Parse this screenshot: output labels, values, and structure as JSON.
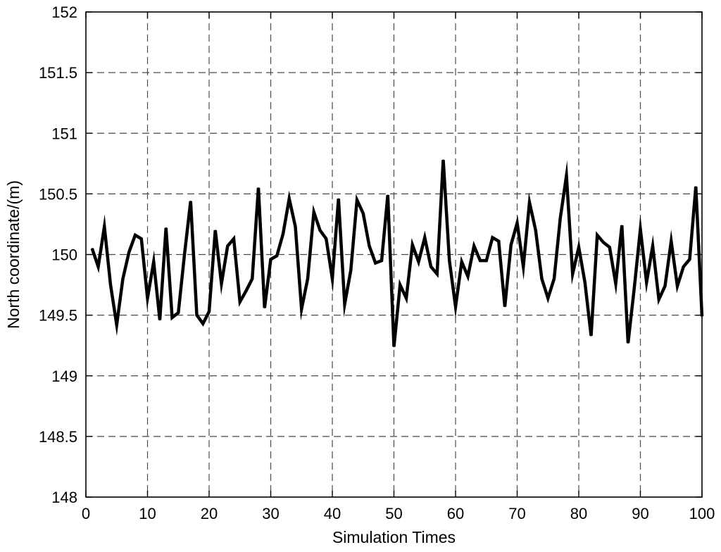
{
  "chart_data": {
    "type": "line",
    "title": "",
    "xlabel": "Simulation Times",
    "ylabel": "North coordinate/(m)",
    "xlim": [
      0,
      100
    ],
    "ylim": [
      148,
      152
    ],
    "grid": true,
    "x_ticks": [
      0,
      10,
      20,
      30,
      40,
      50,
      60,
      70,
      80,
      90,
      100
    ],
    "x_tick_labels": [
      "0",
      "10",
      "20",
      "30",
      "40",
      "50",
      "60",
      "70",
      "80",
      "90",
      "100"
    ],
    "y_ticks": [
      148,
      148.5,
      149,
      149.5,
      150,
      150.5,
      151,
      151.5,
      152
    ],
    "y_tick_labels": [
      "148",
      "148.5",
      "149",
      "149.5",
      "150",
      "150.5",
      "151",
      "151.5",
      "152"
    ],
    "colors": {
      "line": "#000000",
      "grid": "#4a4a4a",
      "background": "#ffffff"
    },
    "series": [
      {
        "x": [
          1,
          2,
          3,
          4,
          5,
          6,
          7,
          8,
          9,
          10,
          11,
          12,
          13,
          14,
          15,
          16,
          17,
          18,
          19,
          20,
          21,
          22,
          23,
          24,
          25,
          26,
          27,
          28,
          29,
          30,
          31,
          32,
          33,
          34,
          35,
          36,
          37,
          38,
          39,
          40,
          41,
          42,
          43,
          44,
          45,
          46,
          47,
          48,
          49,
          50,
          51,
          52,
          53,
          54,
          55,
          56,
          57,
          58,
          59,
          60,
          61,
          62,
          63,
          64,
          65,
          66,
          67,
          68,
          69,
          70,
          71,
          72,
          73,
          74,
          75,
          76,
          77,
          78,
          79,
          80,
          81,
          82,
          83,
          84,
          85,
          86,
          87,
          88,
          89,
          90,
          91,
          92,
          93,
          94,
          95,
          96,
          97,
          98,
          99,
          100
        ],
        "values": [
          150.05,
          149.9,
          150.23,
          149.75,
          149.42,
          149.8,
          150.02,
          150.16,
          150.13,
          149.64,
          149.94,
          149.46,
          150.22,
          149.48,
          149.52,
          150.0,
          150.44,
          149.5,
          149.43,
          149.53,
          150.2,
          149.76,
          150.07,
          150.13,
          149.61,
          149.7,
          149.8,
          150.55,
          149.56,
          149.96,
          149.99,
          150.17,
          150.46,
          150.23,
          149.55,
          149.8,
          150.35,
          150.2,
          150.13,
          149.8,
          150.46,
          149.59,
          149.87,
          150.45,
          150.34,
          150.07,
          149.93,
          149.95,
          150.49,
          149.24,
          149.75,
          149.64,
          150.08,
          149.94,
          150.14,
          149.9,
          149.84,
          150.78,
          149.95,
          149.57,
          149.94,
          149.82,
          150.07,
          149.95,
          149.95,
          150.14,
          150.11,
          149.57,
          150.08,
          150.26,
          149.9,
          150.43,
          150.2,
          149.8,
          149.64,
          149.8,
          150.3,
          150.65,
          149.84,
          150.06,
          149.77,
          149.33,
          150.16,
          150.1,
          150.06,
          149.76,
          150.24,
          149.27,
          149.72,
          150.21,
          149.77,
          150.07,
          149.63,
          149.74,
          150.11,
          149.74,
          149.9,
          149.96,
          150.56,
          149.49
        ]
      }
    ]
  }
}
